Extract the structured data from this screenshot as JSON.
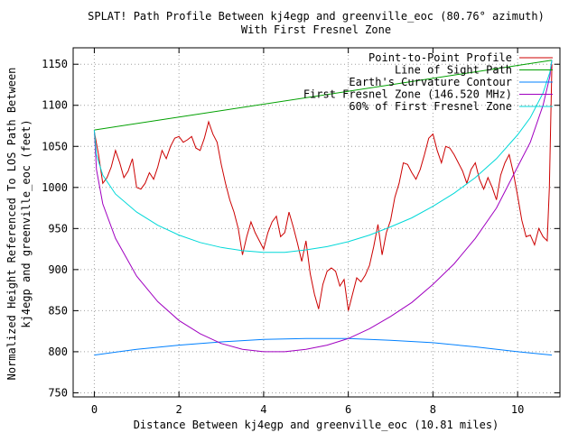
{
  "chart_data": {
    "type": "line",
    "title": "SPLAT! Path Profile Between kj4egp and greenville_eoc (80.76° azimuth)",
    "subtitle": "With First Fresnel Zone",
    "xlabel": "Distance Between kj4egp and greenville_eoc (10.81 miles)",
    "ylabel_line1": "Normalized Height Referenced To LOS Path Between",
    "ylabel_line2": "kj4egp and greenville_eoc (feet)",
    "xlim": [
      -0.5,
      11.0
    ],
    "ylim": [
      745,
      1170
    ],
    "x_ticks": [
      0,
      2,
      4,
      6,
      8,
      10
    ],
    "y_ticks": [
      750,
      800,
      850,
      900,
      950,
      1000,
      1050,
      1100,
      1150
    ],
    "grid": true,
    "legend_position": "top-right",
    "series": [
      {
        "name": "Point-to-Point Profile",
        "color": "#cc0000",
        "x": [
          0.0,
          0.1,
          0.2,
          0.3,
          0.4,
          0.5,
          0.6,
          0.7,
          0.8,
          0.9,
          1.0,
          1.1,
          1.2,
          1.3,
          1.4,
          1.5,
          1.6,
          1.7,
          1.8,
          1.9,
          2.0,
          2.1,
          2.2,
          2.3,
          2.4,
          2.5,
          2.6,
          2.7,
          2.8,
          2.9,
          3.0,
          3.1,
          3.2,
          3.3,
          3.4,
          3.5,
          3.6,
          3.7,
          3.8,
          3.9,
          4.0,
          4.1,
          4.2,
          4.3,
          4.4,
          4.5,
          4.6,
          4.7,
          4.8,
          4.9,
          5.0,
          5.1,
          5.2,
          5.3,
          5.4,
          5.5,
          5.6,
          5.7,
          5.8,
          5.9,
          6.0,
          6.1,
          6.2,
          6.3,
          6.4,
          6.5,
          6.6,
          6.7,
          6.8,
          6.9,
          7.0,
          7.1,
          7.2,
          7.3,
          7.4,
          7.5,
          7.6,
          7.7,
          7.8,
          7.9,
          8.0,
          8.1,
          8.2,
          8.3,
          8.4,
          8.5,
          8.6,
          8.7,
          8.8,
          8.9,
          9.0,
          9.1,
          9.2,
          9.3,
          9.4,
          9.5,
          9.6,
          9.7,
          9.8,
          9.9,
          10.0,
          10.1,
          10.2,
          10.3,
          10.4,
          10.5,
          10.6,
          10.7,
          10.75,
          10.81
        ],
        "values": [
          1068,
          1040,
          1005,
          1012,
          1025,
          1045,
          1030,
          1012,
          1020,
          1035,
          1000,
          998,
          1005,
          1018,
          1010,
          1025,
          1045,
          1035,
          1050,
          1060,
          1062,
          1055,
          1058,
          1062,
          1048,
          1045,
          1060,
          1080,
          1065,
          1055,
          1028,
          1005,
          985,
          970,
          950,
          918,
          940,
          958,
          945,
          935,
          925,
          945,
          958,
          965,
          940,
          945,
          970,
          952,
          932,
          910,
          935,
          895,
          870,
          852,
          882,
          898,
          902,
          898,
          880,
          888,
          850,
          870,
          890,
          885,
          893,
          905,
          928,
          955,
          918,
          945,
          960,
          988,
          1005,
          1030,
          1028,
          1018,
          1010,
          1022,
          1040,
          1060,
          1065,
          1045,
          1030,
          1050,
          1048,
          1040,
          1030,
          1020,
          1005,
          1022,
          1030,
          1010,
          998,
          1012,
          1000,
          985,
          1015,
          1030,
          1040,
          1018,
          990,
          960,
          940,
          942,
          930,
          950,
          940,
          935,
          1000,
          1150
        ]
      },
      {
        "name": "Line of Sight Path",
        "color": "#00a000",
        "x": [
          0.0,
          10.81
        ],
        "values": [
          1070,
          1155
        ]
      },
      {
        "name": "Earth's Curvature Contour",
        "color": "#0080ff",
        "x": [
          0.0,
          1.0,
          2.0,
          3.0,
          4.0,
          5.0,
          6.0,
          7.0,
          8.0,
          9.0,
          10.0,
          10.81
        ],
        "values": [
          796,
          803,
          808,
          812,
          815,
          816,
          816,
          814,
          811,
          806,
          800,
          796
        ]
      },
      {
        "name": "First Fresnel Zone (146.520 MHz)",
        "color": "#a000c0",
        "x": [
          0.0,
          0.05,
          0.2,
          0.5,
          1.0,
          1.5,
          2.0,
          2.5,
          3.0,
          3.5,
          4.0,
          4.5,
          5.0,
          5.5,
          6.0,
          6.5,
          7.0,
          7.5,
          8.0,
          8.5,
          9.0,
          9.5,
          10.0,
          10.3,
          10.6,
          10.76,
          10.81
        ],
        "values": [
          1070,
          1022,
          980,
          938,
          892,
          861,
          838,
          822,
          810,
          803,
          800,
          800,
          803,
          808,
          816,
          828,
          843,
          860,
          882,
          907,
          938,
          975,
          1025,
          1055,
          1100,
          1135,
          1155
        ]
      },
      {
        "name": "60% of First Fresnel Zone",
        "color": "#00d8d8",
        "x": [
          0.0,
          0.05,
          0.2,
          0.5,
          1.0,
          1.5,
          2.0,
          2.5,
          3.0,
          3.5,
          4.0,
          4.5,
          5.0,
          5.5,
          6.0,
          6.5,
          7.0,
          7.5,
          8.0,
          8.5,
          9.0,
          9.5,
          10.0,
          10.3,
          10.6,
          10.76,
          10.81
        ],
        "values": [
          1070,
          1040,
          1015,
          992,
          970,
          954,
          942,
          933,
          927,
          923,
          921,
          921,
          924,
          928,
          934,
          942,
          952,
          963,
          977,
          993,
          1012,
          1035,
          1064,
          1085,
          1115,
          1140,
          1155
        ]
      }
    ]
  }
}
